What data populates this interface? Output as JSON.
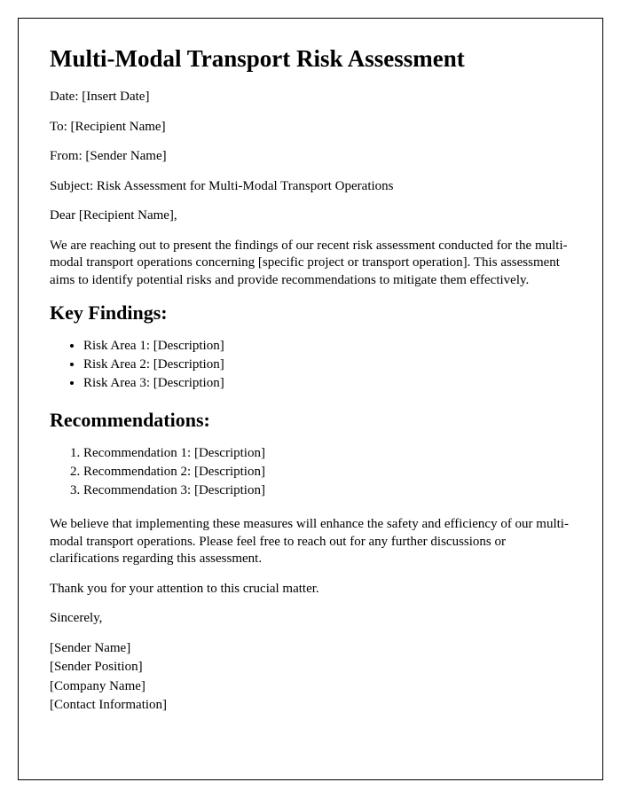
{
  "title": "Multi-Modal Transport Risk Assessment",
  "meta": {
    "date": "Date: [Insert Date]",
    "to": "To: [Recipient Name]",
    "from": "From: [Sender Name]",
    "subject": "Subject: Risk Assessment for Multi-Modal Transport Operations"
  },
  "salutation": "Dear [Recipient Name],",
  "intro": "We are reaching out to present the findings of our recent risk assessment conducted for the multi-modal transport operations concerning [specific project or transport operation]. This assessment aims to identify potential risks and provide recommendations to mitigate them effectively.",
  "findings_heading": "Key Findings:",
  "findings": [
    "Risk Area 1: [Description]",
    "Risk Area 2: [Description]",
    "Risk Area 3: [Description]"
  ],
  "recommendations_heading": "Recommendations:",
  "recommendations": [
    "Recommendation 1: [Description]",
    "Recommendation 2: [Description]",
    "Recommendation 3: [Description]"
  ],
  "closing1": "We believe that implementing these measures will enhance the safety and efficiency of our multi-modal transport operations. Please feel free to reach out for any further discussions or clarifications regarding this assessment.",
  "closing2": "Thank you for your attention to this crucial matter.",
  "signoff": "Sincerely,",
  "signature": {
    "name": "[Sender Name]",
    "position": "[Sender Position]",
    "company": "[Company Name]",
    "contact": "[Contact Information]"
  },
  "styling": {
    "font_family": "Times New Roman",
    "border_color": "#000000",
    "background_color": "#ffffff",
    "text_color": "#000000",
    "h1_fontsize": 27,
    "h2_fontsize": 22,
    "body_fontsize": 15
  }
}
